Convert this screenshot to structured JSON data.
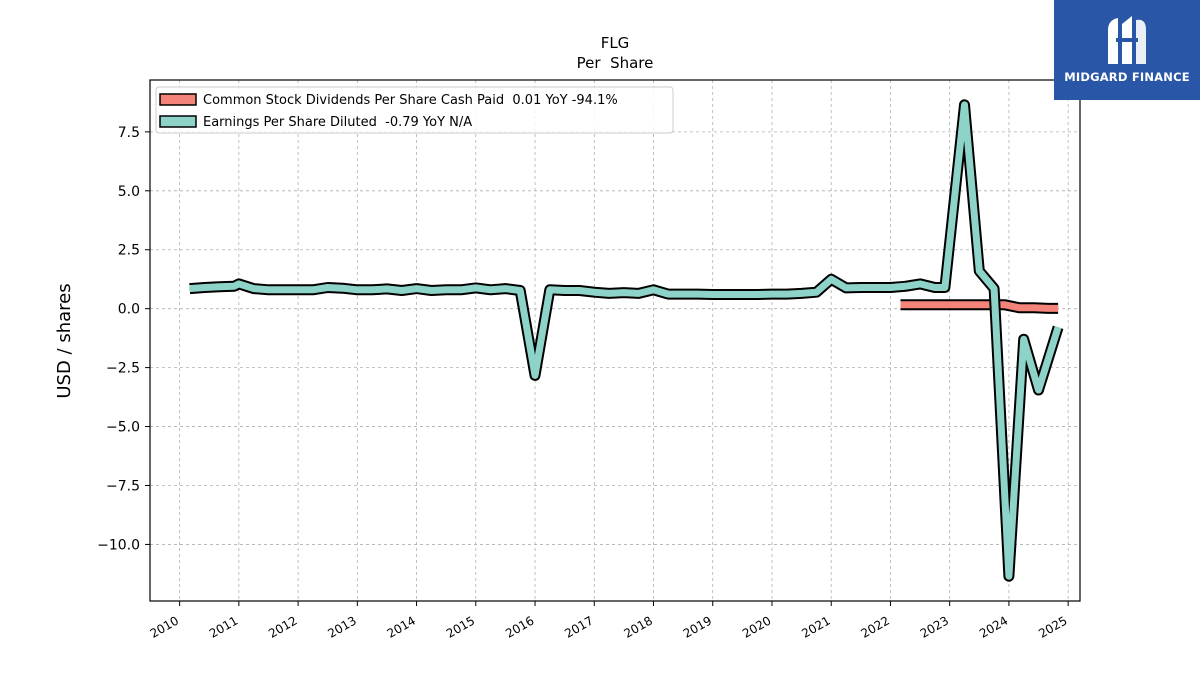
{
  "brand": {
    "name": "MIDGARD FINANCE",
    "bg_color": "#2a56a8"
  },
  "chart_data": {
    "type": "line",
    "title": "FLG",
    "subtitle": "Per  Share",
    "ylabel": "USD / shares",
    "xlabel": "",
    "xlim": [
      2009.5,
      2025.2
    ],
    "ylim": [
      -12.4,
      9.7
    ],
    "x_ticks": [
      2010,
      2011,
      2012,
      2013,
      2014,
      2015,
      2016,
      2017,
      2018,
      2019,
      2020,
      2021,
      2022,
      2023,
      2024,
      2025
    ],
    "y_ticks": [
      7.5,
      5.0,
      2.5,
      0.0,
      -2.5,
      -5.0,
      -7.5,
      -10.0
    ],
    "y_tick_labels": [
      "7.5",
      "5.0",
      "2.5",
      "0.0",
      "−2.5",
      "−5.0",
      "−7.5",
      "−10.0"
    ],
    "grid": true,
    "legend_position": "top-left",
    "series": [
      {
        "name": "Common Stock Dividends Per Share Cash Paid  0.01 YoY -94.1%",
        "color": "#f4837a",
        "x": [
          2022.17,
          2022.42,
          2022.67,
          2022.92,
          2023.17,
          2023.42,
          2023.67,
          2023.92,
          2024.17,
          2024.42,
          2024.67,
          2024.83
        ],
        "y": [
          0.17,
          0.17,
          0.17,
          0.17,
          0.17,
          0.17,
          0.17,
          0.17,
          0.04,
          0.04,
          0.01,
          0.01
        ]
      },
      {
        "name": "Earnings Per Share Diluted  -0.79 YoY N/A",
        "color": "#8dd3c7",
        "x": [
          2010.17,
          2010.42,
          2010.67,
          2010.92,
          2011.0,
          2011.25,
          2011.5,
          2011.75,
          2012.0,
          2012.25,
          2012.5,
          2012.75,
          2013.0,
          2013.25,
          2013.5,
          2013.75,
          2014.0,
          2014.25,
          2014.5,
          2014.75,
          2015.0,
          2015.25,
          2015.5,
          2015.75,
          2016.0,
          2016.25,
          2016.5,
          2016.75,
          2017.0,
          2017.25,
          2017.5,
          2017.75,
          2018.0,
          2018.25,
          2018.5,
          2018.75,
          2019.0,
          2019.25,
          2019.5,
          2019.75,
          2020.0,
          2020.25,
          2020.5,
          2020.75,
          2021.0,
          2021.25,
          2021.5,
          2021.75,
          2022.0,
          2022.25,
          2022.5,
          2022.75,
          2022.92,
          2023.25,
          2023.5,
          2023.75,
          2024.0,
          2024.25,
          2024.5,
          2024.83
        ],
        "y": [
          0.85,
          0.9,
          0.93,
          0.95,
          1.05,
          0.85,
          0.8,
          0.8,
          0.8,
          0.8,
          0.9,
          0.87,
          0.8,
          0.8,
          0.84,
          0.77,
          0.85,
          0.77,
          0.8,
          0.8,
          0.88,
          0.8,
          0.85,
          0.77,
          -2.83,
          0.8,
          0.77,
          0.77,
          0.7,
          0.65,
          0.68,
          0.65,
          0.8,
          0.62,
          0.62,
          0.62,
          0.6,
          0.6,
          0.6,
          0.6,
          0.62,
          0.62,
          0.65,
          0.7,
          1.25,
          0.88,
          0.9,
          0.9,
          0.9,
          0.95,
          1.05,
          0.9,
          0.9,
          8.65,
          1.6,
          0.85,
          -11.35,
          -1.3,
          -3.45,
          -0.79
        ]
      }
    ]
  }
}
